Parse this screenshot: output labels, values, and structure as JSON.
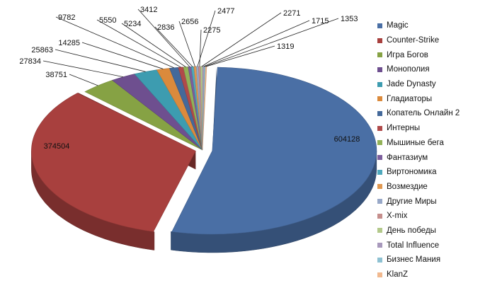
{
  "chart_data": {
    "type": "pie",
    "three_d": true,
    "legend_position": "right",
    "title": "",
    "series": [
      {
        "name": "Magic",
        "value": 604128,
        "color": "#4A6FA5"
      },
      {
        "name": "Counter-Strike",
        "value": 374504,
        "color": "#A8403E"
      },
      {
        "name": "Игра Богов",
        "value": 38751,
        "color": "#86A244"
      },
      {
        "name": "Монополия",
        "value": 27834,
        "color": "#6E4F8F"
      },
      {
        "name": "Jade Dynasty",
        "value": 25863,
        "color": "#3D9CB0"
      },
      {
        "name": "Гладиаторы",
        "value": 14285,
        "color": "#DB8A3C"
      },
      {
        "name": "Копатель Онлайн 2",
        "value": 9782,
        "color": "#44699A"
      },
      {
        "name": "Интерны",
        "value": 5550,
        "color": "#B04A4A"
      },
      {
        "name": "Мышиные бега",
        "value": 5234,
        "color": "#93B258"
      },
      {
        "name": "Фантазиум",
        "value": 3412,
        "color": "#7C5E9C"
      },
      {
        "name": "Виртономика",
        "value": 2836,
        "color": "#4FA9BD"
      },
      {
        "name": "Возмездие",
        "value": 2656,
        "color": "#E09850"
      },
      {
        "name": "Другие Миры",
        "value": 2477,
        "color": "#98A8C8"
      },
      {
        "name": "X-mix",
        "value": 2275,
        "color": "#C58E8C"
      },
      {
        "name": "День победы",
        "value": 2271,
        "color": "#B3C98B"
      },
      {
        "name": "Total Influence",
        "value": 1715,
        "color": "#A899BC"
      },
      {
        "name": "Бизнес Мания",
        "value": 1353,
        "color": "#8EC1D2"
      },
      {
        "name": "KlanZ",
        "value": 1319,
        "color": "#F1B98F"
      }
    ]
  }
}
